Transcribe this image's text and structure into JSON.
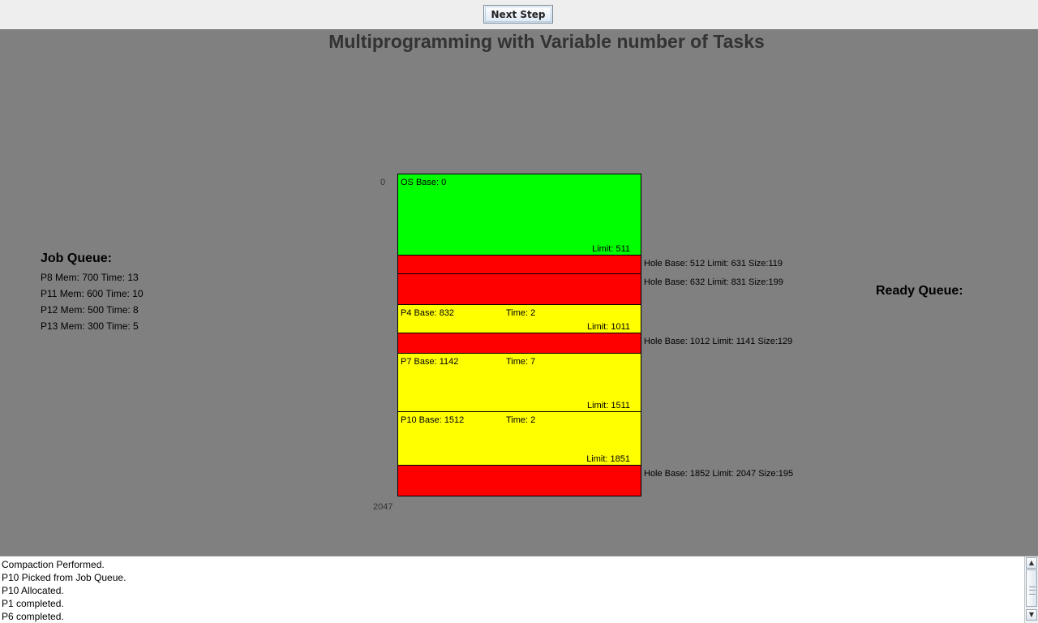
{
  "toolbar": {
    "next_step_label": "Next Step"
  },
  "title": "Multiprogramming with Variable number of Tasks",
  "job_queue": {
    "heading": "Job Queue:",
    "items": [
      "P8 Mem: 700 Time: 13",
      "P11 Mem: 600 Time: 10",
      "P12 Mem: 500 Time: 8",
      "P13 Mem: 300 Time: 5"
    ]
  },
  "ready_queue": {
    "heading": "Ready Queue:",
    "items": []
  },
  "memory": {
    "start_address": "0",
    "end_address": "2047",
    "colors": {
      "os": "#00ff00",
      "process": "#ffff00",
      "hole": "#ff0000"
    },
    "blocks": [
      {
        "type": "os",
        "label": "OS Base: 0",
        "time": "",
        "limit": "Limit: 511"
      },
      {
        "type": "hole",
        "info": "Hole Base: 512 Limit: 631 Size:119"
      },
      {
        "type": "hole",
        "info": "Hole Base: 632 Limit: 831 Size:199"
      },
      {
        "type": "process",
        "label": "P4 Base: 832",
        "time": "Time: 2",
        "limit": "Limit: 1011"
      },
      {
        "type": "hole",
        "info": "Hole Base: 1012 Limit: 1141 Size:129"
      },
      {
        "type": "process",
        "label": "P7 Base: 1142",
        "time": "Time: 7",
        "limit": "Limit: 1511"
      },
      {
        "type": "process",
        "label": "P10 Base: 1512",
        "time": "Time: 2",
        "limit": "Limit: 1851"
      },
      {
        "type": "hole",
        "info": "Hole Base: 1852 Limit: 2047 Size:195"
      }
    ]
  },
  "log": {
    "lines": [
      "Compaction Performed.",
      "P10 Picked from Job Queue.",
      "P10 Allocated.",
      "P1 completed.",
      "P6 completed."
    ]
  }
}
